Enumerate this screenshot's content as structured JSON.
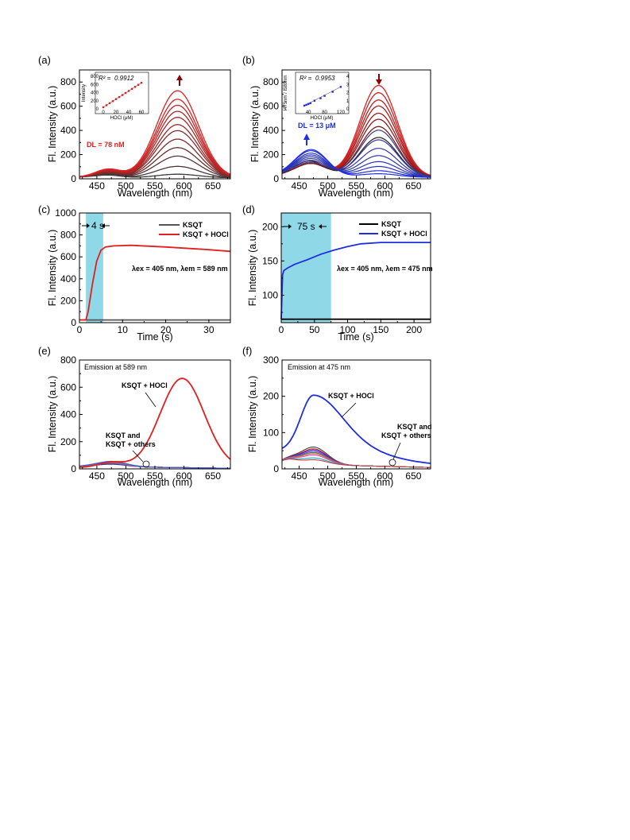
{
  "chart_data": [
    {
      "panel": "(a)",
      "type": "line",
      "xlabel": "Wavelength (nm)",
      "ylabel": "Fl. Intensity (a.u.)",
      "xlim": [
        420,
        680
      ],
      "ylim": [
        0,
        900
      ],
      "xticks": [
        "450",
        "500",
        "550",
        "600",
        "650"
      ],
      "yticks": [
        "0",
        "200",
        "400",
        "600",
        "800"
      ],
      "peak_nm": 589,
      "shoulder_nm": 470,
      "series_peaks": [
        30,
        95,
        180,
        250,
        320,
        390,
        440,
        500,
        550,
        600,
        650,
        720
      ],
      "colors": {
        "low": "#3a3a3a",
        "high": "#e02020"
      },
      "annotation": "DL = 78 nM",
      "arrow": "up",
      "inset": {
        "r2": "0.9912",
        "xlabel": "HOCl (μM)",
        "ylabel": "Intensity",
        "xticks": [
          "0",
          "20",
          "40",
          "60"
        ],
        "yticks": [
          "0",
          "200",
          "400",
          "600",
          "800"
        ],
        "xlim": [
          -5,
          65
        ],
        "ylim": [
          0,
          800
        ],
        "points": [
          [
            0,
            40
          ],
          [
            5,
            90
          ],
          [
            10,
            140
          ],
          [
            15,
            190
          ],
          [
            20,
            240
          ],
          [
            25,
            290
          ],
          [
            30,
            340
          ],
          [
            35,
            390
          ],
          [
            40,
            440
          ],
          [
            45,
            490
          ],
          [
            50,
            540
          ],
          [
            55,
            590
          ],
          [
            60,
            640
          ]
        ]
      }
    },
    {
      "panel": "(b)",
      "type": "line",
      "xlabel": "Wavelength (nm)",
      "ylabel": "Fl. Intensity (a.u.)",
      "xlim": [
        420,
        680
      ],
      "ylim": [
        0,
        900
      ],
      "xticks": [
        "450",
        "500",
        "550",
        "600",
        "650"
      ],
      "yticks": [
        "0",
        "200",
        "400",
        "600",
        "800"
      ],
      "red_peaks": [
        760,
        700,
        640,
        590,
        530,
        480,
        420
      ],
      "blue_set": [
        {
          "a475": 120,
          "a589": 390
        },
        {
          "a475": 135,
          "a589": 310
        },
        {
          "a475": 150,
          "a589": 240
        },
        {
          "a475": 165,
          "a589": 180
        },
        {
          "a475": 180,
          "a589": 130
        },
        {
          "a475": 195,
          "a589": 90
        },
        {
          "a475": 215,
          "a589": 55
        },
        {
          "a475": 225,
          "a589": 30
        }
      ],
      "colors": {
        "blue": "#1f2ee0",
        "red": "#e02020",
        "dark": "#2a2a2a"
      },
      "annotation": "DL = 13 μM",
      "inset": {
        "r2": "0.9953",
        "xlabel": "HOCl (μM)",
        "ylabel": "I475nm / I589nm",
        "xticks": [
          "40",
          "80",
          "120"
        ],
        "yticks": [
          "0",
          "1",
          "2",
          "3",
          "4"
        ],
        "xlim": [
          20,
          130
        ],
        "ylim": [
          0,
          4
        ],
        "points": [
          [
            30,
            0.4
          ],
          [
            35,
            0.5
          ],
          [
            40,
            0.6
          ],
          [
            45,
            0.7
          ],
          [
            55,
            1.0
          ],
          [
            70,
            1.3
          ],
          [
            80,
            1.6
          ],
          [
            100,
            2.1
          ],
          [
            120,
            2.7
          ]
        ]
      }
    },
    {
      "panel": "(c)",
      "type": "line",
      "xlabel": "Time (s)",
      "ylabel": "Fl. Intensity (a.u.)",
      "xlim": [
        0,
        35
      ],
      "ylim": [
        0,
        1000
      ],
      "xticks": [
        "0",
        "10",
        "20",
        "30"
      ],
      "yticks": [
        "0",
        "100",
        "200",
        "300",
        "400",
        "500",
        "600",
        "700",
        "800",
        "900",
        "1000"
      ],
      "shade": [
        1.5,
        5.5
      ],
      "shade_label": "4 s",
      "annotation": "λex = 405 nm, λem = 589 nm",
      "series": [
        {
          "name": "KSQT",
          "color": "#555555",
          "points": [
            [
              0,
              25
            ],
            [
              35,
              25
            ]
          ]
        },
        {
          "name": "KSQT + HOCl",
          "color": "#e02020",
          "points": [
            [
              0,
              25
            ],
            [
              1.5,
              25
            ],
            [
              2,
              100
            ],
            [
              3,
              350
            ],
            [
              4,
              560
            ],
            [
              5,
              660
            ],
            [
              6,
              690
            ],
            [
              8,
              700
            ],
            [
              12,
              705
            ],
            [
              20,
              690
            ],
            [
              30,
              665
            ],
            [
              35,
              650
            ]
          ]
        }
      ]
    },
    {
      "panel": "(d)",
      "type": "line",
      "xlabel": "Time (s)",
      "ylabel": "Fl. Intensity (a.u.)",
      "xlim": [
        0,
        225
      ],
      "ylim": [
        60,
        220
      ],
      "xticks": [
        "0",
        "50",
        "100",
        "150",
        "200"
      ],
      "yticks": [
        "100",
        "150",
        "200"
      ],
      "shade": [
        0,
        75
      ],
      "shade_label": "75 s",
      "annotation": "λex = 405 nm, λem = 475 nm",
      "series": [
        {
          "name": "KSQT",
          "color": "#000000",
          "points": [
            [
              0,
              65
            ],
            [
              225,
              65
            ]
          ]
        },
        {
          "name": "KSQT + HOCl",
          "color": "#1f2ee0",
          "points": [
            [
              0,
              65
            ],
            [
              2,
              130
            ],
            [
              4,
              136
            ],
            [
              10,
              140
            ],
            [
              20,
              145
            ],
            [
              40,
              152
            ],
            [
              60,
              160
            ],
            [
              80,
              166
            ],
            [
              100,
              171
            ],
            [
              120,
              175
            ],
            [
              150,
              177
            ],
            [
              180,
              177
            ],
            [
              225,
              177
            ]
          ]
        }
      ]
    },
    {
      "panel": "(e)",
      "type": "line",
      "xlabel": "Wavelength (nm)",
      "ylabel": "Fl. Intensity (a.u.)",
      "xlim": [
        420,
        680
      ],
      "ylim": [
        0,
        800
      ],
      "xticks": [
        "450",
        "500",
        "550",
        "600",
        "650"
      ],
      "yticks": [
        "0",
        "200",
        "400",
        "600",
        "800"
      ],
      "title": "Emission at 589 nm",
      "label_hocl": "KSQT + HOCl",
      "label_others_1": "KSQT and",
      "label_others_2": "KSQT + others",
      "hocl_peak": {
        "nm": 597,
        "value": 655
      },
      "others_colors": [
        "#404040",
        "#1f2ee0",
        "#a020c0",
        "#20a060",
        "#d07030",
        "#e040b0",
        "#707070",
        "#4060d0"
      ]
    },
    {
      "panel": "(f)",
      "type": "line",
      "xlabel": "Wavelength (nm)",
      "ylabel": "Fl. Intensity (a.u.)",
      "xlim": [
        420,
        680
      ],
      "ylim": [
        0,
        300
      ],
      "xticks": [
        "450",
        "500",
        "550",
        "600",
        "650"
      ],
      "yticks": [
        "0",
        "100",
        "200",
        "300"
      ],
      "title": "Emission at 475 nm",
      "label_hocl": "KSQT + HOCl",
      "label_others_1": "KSQT and",
      "label_others_2": "KSQT + others",
      "hocl_peak": {
        "nm": 475,
        "value": 203
      },
      "others_peaks": [
        60,
        55,
        52,
        48,
        45,
        42,
        38,
        30,
        25
      ],
      "others_colors": [
        "#404040",
        "#e02020",
        "#1f2ee0",
        "#a020c0",
        "#20a060",
        "#d07030",
        "#e040b0",
        "#20a0c0",
        "#c04040"
      ]
    }
  ],
  "labels": {
    "a": "(a)",
    "b": "(b)",
    "c": "(c)",
    "d": "(d)",
    "e": "(e)",
    "f": "(f)"
  }
}
